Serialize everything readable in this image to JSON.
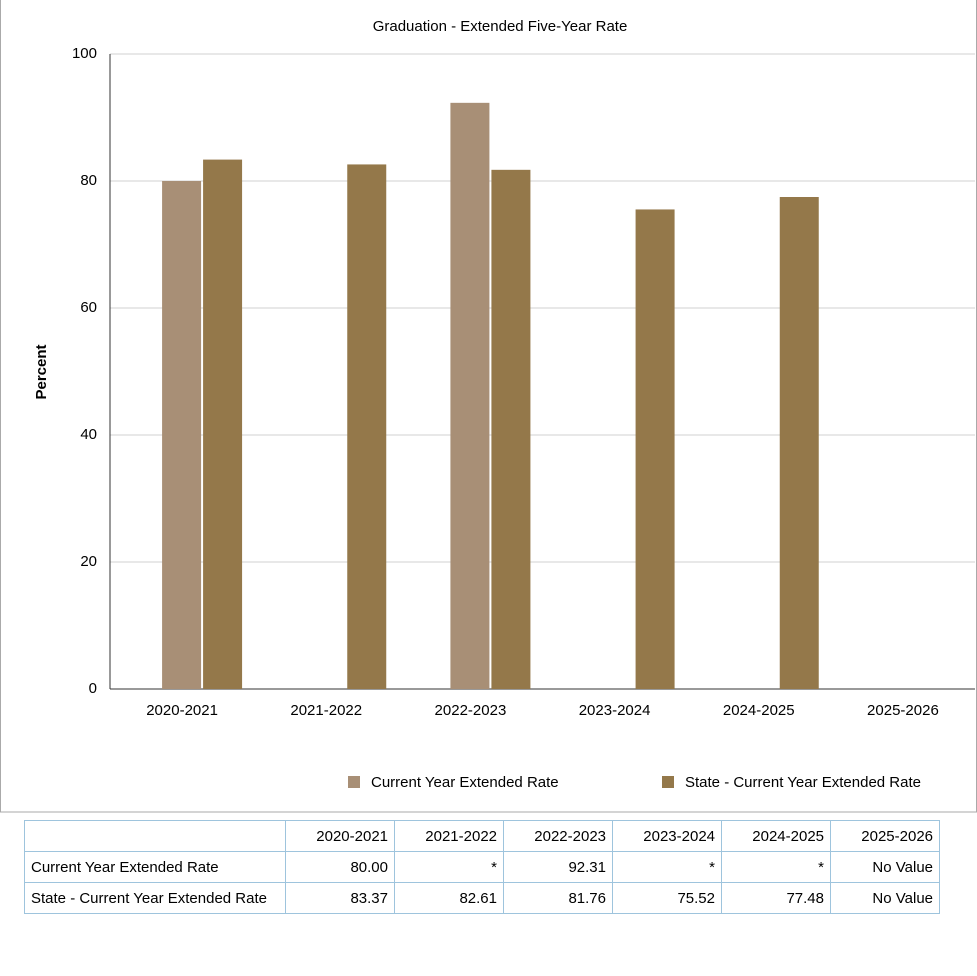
{
  "chart_data": {
    "type": "bar",
    "title": "Graduation - Extended Five-Year Rate",
    "y_label": "Percent",
    "categories": [
      "2020-2021",
      "2021-2022",
      "2022-2023",
      "2023-2024",
      "2024-2025",
      "2025-2026"
    ],
    "series": [
      {
        "name": "Current Year Extended Rate",
        "color": "#a88f76",
        "values": [
          80,
          null,
          92.31,
          null,
          null,
          null
        ],
        "value_labels": [
          "80.00",
          "*",
          "92.31",
          "*",
          "*",
          "No Value"
        ]
      },
      {
        "name": "State - Current Year Extended Rate",
        "color": "#94784a",
        "values": [
          83.37,
          82.61,
          81.76,
          75.52,
          77.48,
          null
        ],
        "value_labels": [
          "83.37",
          "82.61",
          "81.76",
          "75.52",
          "77.48",
          "No Value"
        ]
      }
    ],
    "ylim": [
      0,
      100
    ],
    "yticks": [
      0,
      20,
      40,
      60,
      80,
      100
    ],
    "grid": true,
    "legend": "bottom"
  }
}
